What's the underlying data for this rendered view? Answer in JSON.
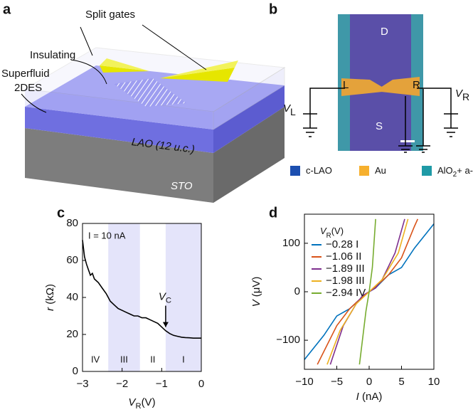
{
  "panel_labels": [
    "a",
    "b",
    "c",
    "d"
  ],
  "diagram_a": {
    "split_gates": "Split gates",
    "insulating": "Insulating",
    "superfluid": [
      "Superfluid",
      "2DES"
    ],
    "lao": "LAO (12 u.c.)",
    "sto": "STO"
  },
  "diagram_b": {
    "drain": "D",
    "source": "S",
    "left": "L",
    "right": "R",
    "vl": [
      "V",
      "L"
    ],
    "vr": [
      "V",
      "R"
    ],
    "legend": [
      {
        "label": [
          "c-LAO"
        ],
        "color": "#1c4fb0"
      },
      {
        "label": [
          "Au"
        ],
        "color": "#f6b02e"
      },
      {
        "label": [
          "AlO",
          "2",
          "+ a-LAO"
        ],
        "color": "#1f9aa6"
      }
    ]
  },
  "chart_data": [
    {
      "type": "line",
      "color": "#000000",
      "x": [
        -3,
        -2.95,
        -2.9,
        -2.85,
        -2.8,
        -2.75,
        -2.7,
        -2.6,
        -2.5,
        -2.4,
        -2.3,
        -2.2,
        -2.1,
        -2.0,
        -1.9,
        -1.8,
        -1.7,
        -1.6,
        -1.5,
        -1.4,
        -1.3,
        -1.2,
        -1.1,
        -1.0,
        -0.9,
        -0.8,
        -0.7,
        -0.6,
        -0.5,
        -0.4,
        -0.3,
        -0.2,
        -0.1,
        0
      ],
      "values": [
        71,
        62,
        58,
        55,
        52,
        53,
        50,
        48,
        45,
        42,
        38,
        36,
        34,
        33,
        32,
        31,
        30,
        30,
        29,
        29,
        28,
        27,
        26,
        24,
        22,
        20.5,
        19.5,
        19,
        18.5,
        18.3,
        18.2,
        18,
        18,
        18
      ],
      "xlabel": [
        "V",
        "R",
        "(V)"
      ],
      "ylabel": [
        "r",
        " (kΩ)"
      ],
      "xlim": [
        -3,
        0
      ],
      "ylim": [
        0,
        80
      ],
      "xticks": [
        {
          "value": -3,
          "label": "−3"
        },
        {
          "value": -2,
          "label": "−2"
        },
        {
          "value": -1,
          "label": "−1"
        },
        0
      ],
      "yticks": [
        0,
        20,
        40,
        60,
        80
      ],
      "shaded_bands": [
        [
          -2.35,
          -1.55
        ],
        [
          -0.9,
          0
        ]
      ],
      "band_color": "#e4e4fa",
      "regions": [
        "IV",
        "III",
        "II",
        "I"
      ],
      "annotation": "I = 10 nA",
      "arrow": {
        "label": [
          "V",
          "C"
        ],
        "x": -0.9,
        "y": 24
      },
      "grid": false
    },
    {
      "type": "line",
      "series": [
        {
          "name": "−0.28 I",
          "color": "#0072bd",
          "x": [
            -10,
            -7,
            -5,
            -3,
            -1,
            0,
            1,
            3,
            5,
            7,
            10
          ],
          "values": [
            -140,
            -90,
            -50,
            -35,
            -10,
            0,
            8,
            35,
            50,
            90,
            140
          ]
        },
        {
          "name": "−1.06 II",
          "color": "#d95319",
          "x": [
            -8,
            -5,
            -3,
            -1,
            0,
            1,
            3,
            5,
            7,
            7.5
          ],
          "values": [
            -150,
            -70,
            -35,
            -10,
            0,
            10,
            35,
            70,
            135,
            150
          ]
        },
        {
          "name": "−1.89 III",
          "color": "#7e2f8e",
          "x": [
            -6,
            -4,
            -2,
            -1,
            0,
            1,
            2,
            4,
            5.5
          ],
          "values": [
            -150,
            -70,
            -25,
            -8,
            0,
            8,
            25,
            80,
            150
          ]
        },
        {
          "name": "−1.98 III",
          "color": "#edb120",
          "x": [
            -6.5,
            -4.5,
            -2,
            0,
            2,
            4.5,
            6
          ],
          "values": [
            -150,
            -80,
            -25,
            0,
            25,
            80,
            150
          ]
        },
        {
          "name": "−2.94 IV",
          "color": "#77ac30",
          "x": [
            -1.5,
            -0.5,
            0,
            0.5,
            1
          ],
          "values": [
            -150,
            -40,
            0,
            50,
            150
          ]
        }
      ],
      "legend_title": [
        "V",
        "R",
        "(V)"
      ],
      "legend": "upper-left",
      "xlabel": [
        "I",
        " (nA)"
      ],
      "ylabel": [
        "V",
        " (μV)"
      ],
      "xlim": [
        -10,
        10
      ],
      "ylim": [
        -160,
        160
      ],
      "xticks": [
        {
          "value": -10,
          "label": "−10"
        },
        {
          "value": -5,
          "label": "−5"
        },
        0,
        5,
        10
      ],
      "yticks": [
        {
          "value": -100,
          "label": "−100"
        },
        0,
        100
      ],
      "grid": false
    }
  ]
}
